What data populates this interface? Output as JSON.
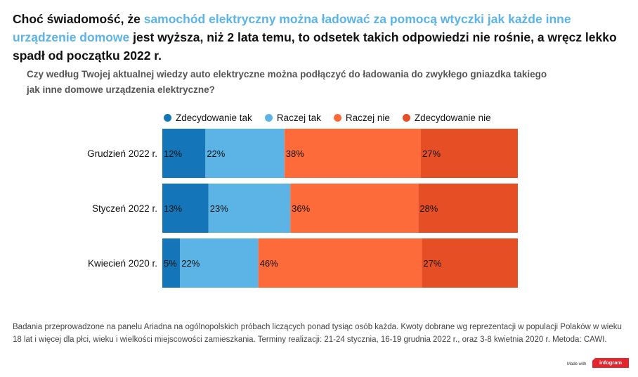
{
  "headline": {
    "part1": "Choć świadomość, że ",
    "highlight": "samochód elektryczny można ładować za pomocą wtyczki jak każde inne urządzenie domowe",
    "part2": " jest wyższa, niż 2 lata temu, to odsetek takich odpowiedzi nie rośnie, a wręcz lekko spadł od początku 2022 r."
  },
  "colors": {
    "highlight": "#5bb4e5",
    "zdecydowanie_tak": "#1476b8",
    "raczej_tak": "#5bb4e5",
    "raczej_nie": "#fe6b3b",
    "zdecydowanie_nie": "#e64f25"
  },
  "chart_data": {
    "type": "bar",
    "orientation": "horizontal-stacked-100",
    "title": "Czy według Twojej aktualnej wiedzy auto elektryczne można podłączyć do ładowania do zwykłego gniazdka takiego jak inne domowe urządzenia elektryczne?",
    "categories": [
      "Grudzień 2022 r.",
      "Styczeń 2022 r.",
      "Kwiecień 2020 r."
    ],
    "series": [
      {
        "name": "Zdecydowanie tak",
        "color": "#1476b8",
        "values": [
          12,
          13,
          5
        ]
      },
      {
        "name": "Raczej tak",
        "color": "#5bb4e5",
        "values": [
          22,
          23,
          22
        ]
      },
      {
        "name": "Raczej nie",
        "color": "#fe6b3b",
        "values": [
          38,
          36,
          46
        ]
      },
      {
        "name": "Zdecydowanie nie",
        "color": "#e64f25",
        "values": [
          27,
          28,
          27
        ]
      }
    ],
    "value_suffix": "%",
    "legend_position": "top",
    "grid": false
  },
  "footnote": "Badania przeprowadzone na panelu Ariadna na ogólnopolskich próbach liczących ponad tysiąc osób każda. Kwoty dobrane wg reprezentacji w populacji Polaków w wieku 18 lat i więcej dla płci, wieku i wielkości miejscowości zamieszkania. Terminy realizacji:  21-24 stycznia, 16-19 grudnia 2022 r., oraz 3-8 kwietnia 2020 r. Metoda: CAWI.",
  "branding": {
    "made_with": "Made with",
    "infogram": "infogram"
  }
}
